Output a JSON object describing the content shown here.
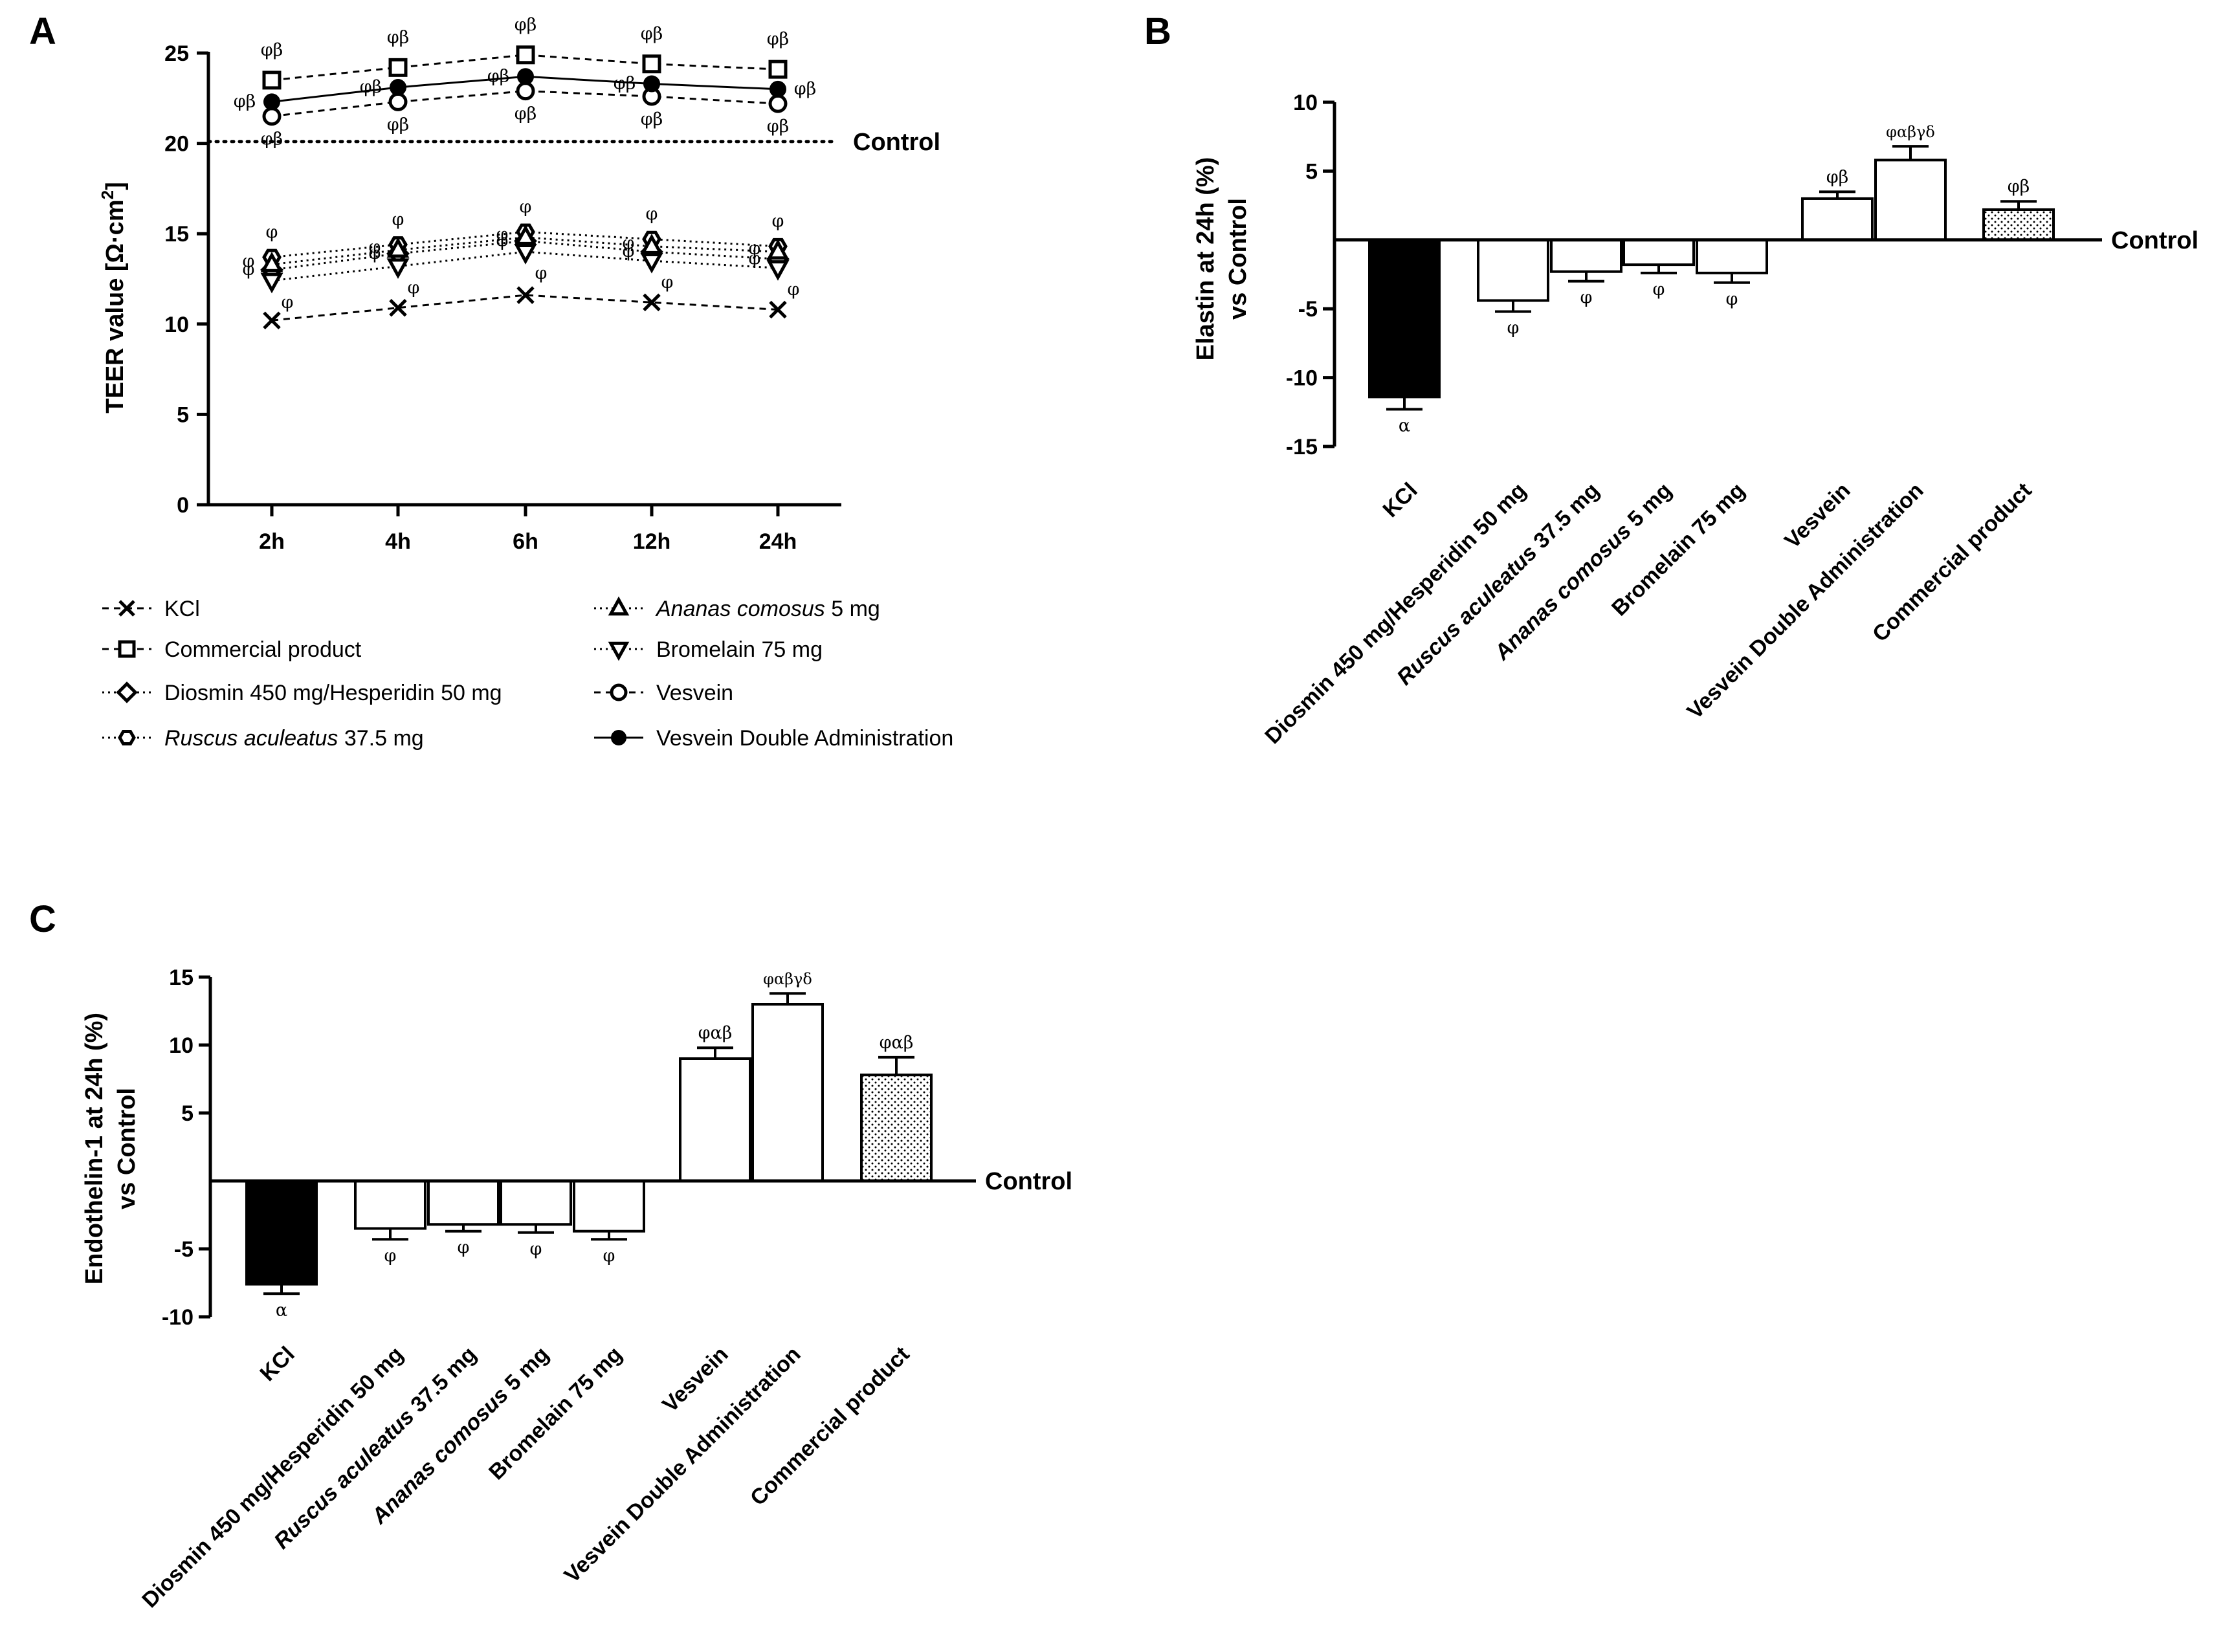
{
  "panel_labels": {
    "a": "A",
    "b": "B",
    "c": "C"
  },
  "chart_data": [
    {
      "id": "A",
      "type": "line",
      "ylabel_main": "TEER value [",
      "ylabel_unit": "Ω·cm",
      "ylabel_sup": "2",
      "ylabel_end": "]",
      "ylim": [
        0,
        25
      ],
      "yticks": [
        "0",
        "5",
        "10",
        "15",
        "20",
        "25"
      ],
      "categories": [
        "2h",
        "4h",
        "6h",
        "12h",
        "24h"
      ],
      "control_value": 20.1,
      "control_label": "Control",
      "series": [
        {
          "name": "KCl",
          "marker": "x",
          "style": "dashed",
          "values": [
            10.2,
            10.9,
            11.6,
            11.2,
            10.8
          ],
          "sig": [
            "",
            "",
            "",
            "",
            ""
          ]
        },
        {
          "name": "Commercial product",
          "marker": "square",
          "style": "dashed",
          "values": [
            23.5,
            24.2,
            24.9,
            24.4,
            24.1
          ],
          "sig": [
            "φβ",
            "φβ",
            "φβ",
            "φβ",
            "φβ"
          ]
        },
        {
          "name": "Diosmin 450 mg/Hesperidin 50 mg",
          "marker": "diamond",
          "style": "dotted",
          "values": [
            13.0,
            13.9,
            14.6,
            14.0,
            13.6
          ],
          "sig": [
            "φ",
            "φ",
            "φ",
            "φ",
            "φ"
          ]
        },
        {
          "name": "Ruscus aculeatus",
          "name_suffix": " 37.5 mg",
          "italic": true,
          "marker": "hexagon",
          "style": "dotted",
          "values": [
            13.7,
            14.4,
            15.1,
            14.7,
            14.3
          ],
          "sig": [
            "φ",
            "φ",
            "φ",
            "φ",
            "φ"
          ]
        },
        {
          "name": "Ananas comosus",
          "name_suffix": " 5 mg",
          "italic": true,
          "marker": "triangle-up",
          "style": "dotted",
          "values": [
            13.3,
            14.1,
            14.8,
            14.3,
            14.0
          ],
          "sig": [
            "φ",
            "φ",
            "φ",
            "φ",
            "φ"
          ]
        },
        {
          "name": "Bromelain 75 mg",
          "marker": "triangle-down",
          "style": "dotted",
          "values": [
            12.4,
            13.2,
            14.0,
            13.5,
            13.1
          ],
          "sig": [
            "φ",
            "φ",
            "φ",
            "φ",
            "φ"
          ]
        },
        {
          "name": "Vesvein",
          "marker": "circle-open",
          "style": "dashed",
          "values": [
            21.5,
            22.3,
            22.9,
            22.6,
            22.2
          ],
          "sig": [
            "φβ",
            "φβ",
            "φβ",
            "φβ",
            "φβ"
          ]
        },
        {
          "name": "Vesvein Double Administration",
          "marker": "circle-filled",
          "style": "solid",
          "values": [
            22.3,
            23.1,
            23.7,
            23.3,
            23.0
          ],
          "sig": [
            "φβ",
            "φβ",
            "φβ",
            "φβ",
            "φβ"
          ]
        }
      ]
    },
    {
      "id": "B",
      "type": "bar",
      "ylabel": [
        "Elastin at 24h (%)",
        "vs Control"
      ],
      "ylim": [
        -15,
        10
      ],
      "yticks": [
        "10",
        "5",
        "-5",
        "-10",
        "-15"
      ],
      "control_label": "Control",
      "categories": [
        {
          "label": "KCl",
          "value": -11.4,
          "err": 0.9,
          "fill": "black",
          "sig": "α"
        },
        {
          "label": "Diosmin 450 mg/Hesperidin 50 mg",
          "value": -4.4,
          "err": 0.8,
          "fill": "white",
          "sig": "φ"
        },
        {
          "label": "Ruscus aculeatus",
          "label_suffix": " 37.5 mg",
          "italic": true,
          "value": -2.3,
          "err": 0.7,
          "fill": "white",
          "sig": "φ"
        },
        {
          "label": "Ananas comosus",
          "label_suffix": " 5 mg",
          "italic": true,
          "value": -1.8,
          "err": 0.6,
          "fill": "white",
          "sig": "φ"
        },
        {
          "label": "Bromelain 75 mg",
          "value": -2.4,
          "err": 0.7,
          "fill": "white",
          "sig": "φ"
        },
        {
          "label": "Vesvein",
          "value": 3.0,
          "err": 0.5,
          "fill": "white",
          "sig": "φβ"
        },
        {
          "label": "Vesvein Double Administration",
          "value": 5.8,
          "err": 1.0,
          "fill": "white",
          "sig": "φαβγδ"
        },
        {
          "label": "Commercial product",
          "value": 2.2,
          "err": 0.6,
          "fill": "dotted",
          "sig": "φβ"
        }
      ]
    },
    {
      "id": "C",
      "type": "bar",
      "ylabel": [
        "Endothelin-1 at 24h (%)",
        "vs Control"
      ],
      "ylim": [
        -10,
        15
      ],
      "yticks": [
        "15",
        "10",
        "5",
        "-5",
        "-10"
      ],
      "control_label": "Control",
      "categories": [
        {
          "label": "KCl",
          "value": -7.6,
          "err": 0.7,
          "fill": "black",
          "sig": "α"
        },
        {
          "label": "Diosmin 450 mg/Hesperidin 50 mg",
          "value": -3.5,
          "err": 0.8,
          "fill": "white",
          "sig": "φ"
        },
        {
          "label": "Ruscus aculeatus",
          "label_suffix": " 37.5 mg",
          "italic": true,
          "value": -3.2,
          "err": 0.5,
          "fill": "white",
          "sig": "φ"
        },
        {
          "label": "Ananas comosus",
          "label_suffix": " 5 mg",
          "italic": true,
          "value": -3.2,
          "err": 0.6,
          "fill": "white",
          "sig": "φ"
        },
        {
          "label": "Bromelain 75 mg",
          "value": -3.7,
          "err": 0.6,
          "fill": "white",
          "sig": "φ"
        },
        {
          "label": "Vesvein",
          "value": 9.0,
          "err": 0.8,
          "fill": "white",
          "sig": "φαβ"
        },
        {
          "label": "Vesvein Double Administration",
          "value": 13.0,
          "err": 0.8,
          "fill": "white",
          "sig": "φαβγδ"
        },
        {
          "label": "Commercial product",
          "value": 7.8,
          "err": 1.3,
          "fill": "dotted",
          "sig": "φαβ"
        }
      ]
    }
  ]
}
